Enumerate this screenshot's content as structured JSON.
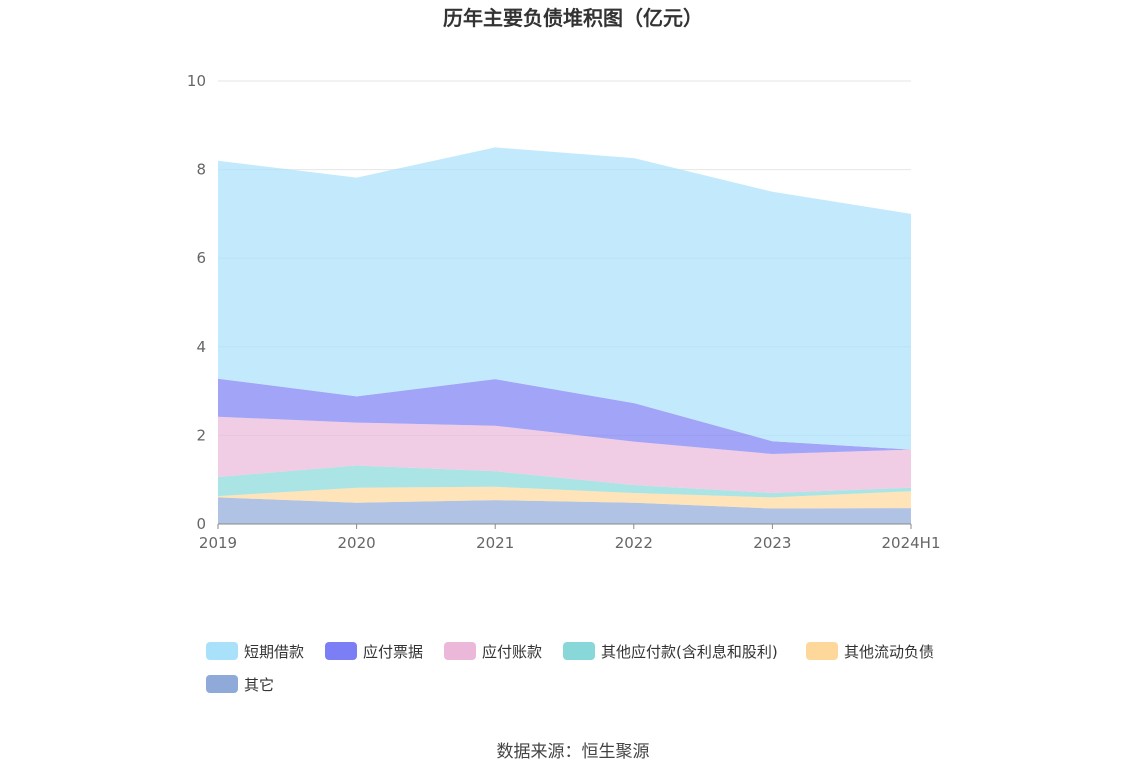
{
  "chart_data": {
    "type": "area",
    "stacked": true,
    "title": "历年主要负债堆积图（亿元）",
    "categories": [
      "2019",
      "2020",
      "2021",
      "2022",
      "2023",
      "2024H1"
    ],
    "ylim": [
      0,
      10
    ],
    "yticks": [
      "0",
      "2",
      "4",
      "6",
      "8",
      "10"
    ],
    "grid": true,
    "legend_position": "bottom",
    "series": [
      {
        "name": "其它",
        "color": "#8fa9d8",
        "values": [
          0.6,
          0.48,
          0.54,
          0.48,
          0.35,
          0.36
        ]
      },
      {
        "name": "其他流动负债",
        "color": "#fdd89a",
        "values": [
          0.03,
          0.34,
          0.3,
          0.22,
          0.25,
          0.38
        ]
      },
      {
        "name": "其他应付款(含利息和股利)",
        "color": "#88d8d9",
        "values": [
          0.43,
          0.5,
          0.35,
          0.18,
          0.1,
          0.08
        ]
      },
      {
        "name": "应付账款",
        "color": "#ebb8da",
        "values": [
          1.36,
          0.97,
          1.03,
          0.98,
          0.88,
          0.86
        ]
      },
      {
        "name": "应付票据",
        "color": "#7b7ef5",
        "values": [
          0.86,
          0.59,
          1.05,
          0.87,
          0.29,
          0.0
        ]
      },
      {
        "name": "短期借款",
        "color": "#a9e1fb",
        "values": [
          4.92,
          4.94,
          5.23,
          5.53,
          5.63,
          5.32
        ]
      }
    ],
    "source": "数据来源：恒生聚源"
  }
}
